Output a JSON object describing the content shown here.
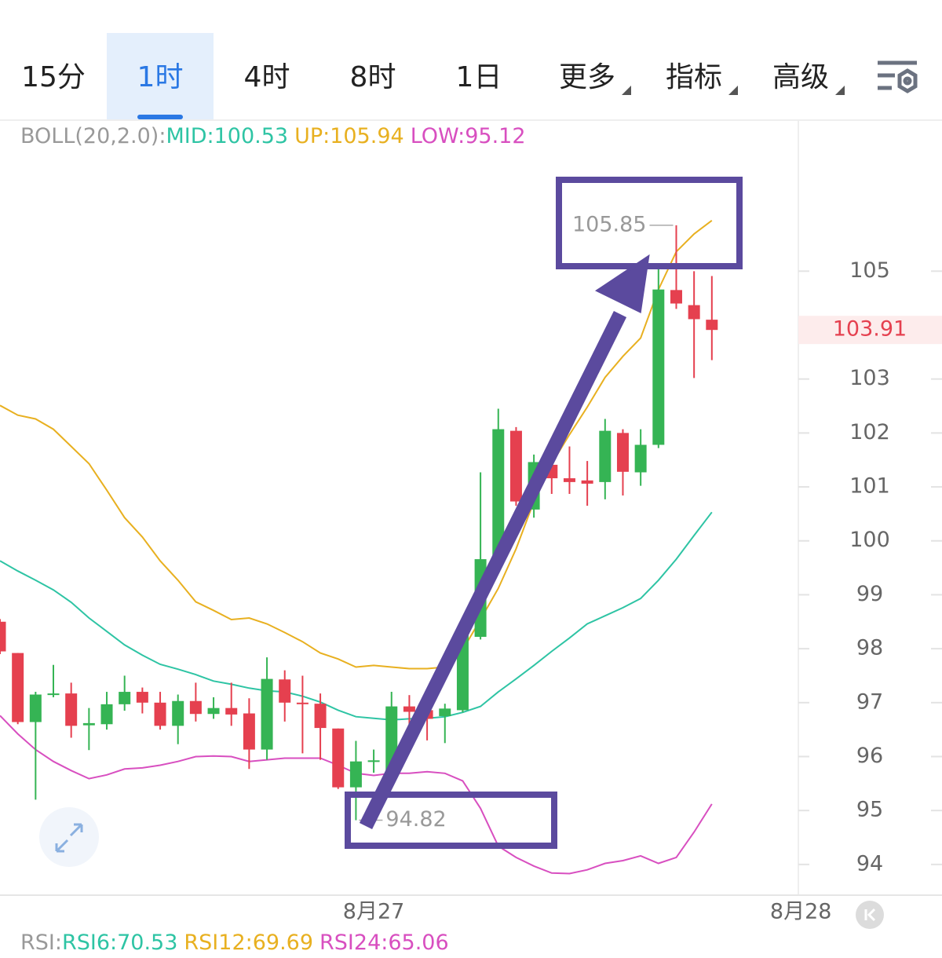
{
  "tabs": {
    "items": [
      "15分",
      "1时",
      "4时",
      "8时",
      "1日",
      "更多",
      "指标",
      "高级"
    ],
    "selected": 1
  },
  "chart_data": {
    "type": "candlestick",
    "indicator_label": "BOLL(20,2.0):",
    "up_color": "#35b454",
    "down_color": "#e5404f",
    "open": [
      98.5,
      97.92,
      96.64,
      97.15,
      97.17,
      96.58,
      96.6,
      96.97,
      97.2,
      97.0,
      96.57,
      97.03,
      96.79,
      96.9,
      96.8,
      96.13,
      97.43,
      97.0,
      96.98,
      96.52,
      95.43,
      95.9,
      95.62,
      96.93,
      96.86,
      96.75,
      96.86,
      98.22,
      99.66,
      102.04,
      100.58,
      101.41,
      101.16,
      101.12,
      101.09,
      102.0,
      101.27,
      101.78,
      104.65,
      104.37,
      104.1
    ],
    "high": [
      98.55,
      97.92,
      97.2,
      97.7,
      97.37,
      96.9,
      97.2,
      97.5,
      97.28,
      97.2,
      97.15,
      97.37,
      97.1,
      97.37,
      97.08,
      97.84,
      97.6,
      97.5,
      97.17,
      96.52,
      96.29,
      96.13,
      97.2,
      97.14,
      97.03,
      96.98,
      98.39,
      101.27,
      102.45,
      102.11,
      101.6,
      101.53,
      101.75,
      101.48,
      102.26,
      102.07,
      102.07,
      105.1,
      105.85,
      105.0,
      104.91
    ],
    "low": [
      97.9,
      96.6,
      95.2,
      97.1,
      96.35,
      96.12,
      96.5,
      96.85,
      96.8,
      96.5,
      96.23,
      96.65,
      96.7,
      96.57,
      95.77,
      95.94,
      96.65,
      96.06,
      95.94,
      95.4,
      94.82,
      95.7,
      95.47,
      96.5,
      96.3,
      96.25,
      96.82,
      98.17,
      99.66,
      100.65,
      100.43,
      100.87,
      100.87,
      100.65,
      100.77,
      100.84,
      101.02,
      101.72,
      104.3,
      103.02,
      103.35
    ],
    "close": [
      97.95,
      96.64,
      97.15,
      97.17,
      96.57,
      96.62,
      96.97,
      97.2,
      97.0,
      96.57,
      97.03,
      96.79,
      96.9,
      96.78,
      96.13,
      97.44,
      97.0,
      96.98,
      96.53,
      95.43,
      95.91,
      95.93,
      96.93,
      96.83,
      96.7,
      96.89,
      98.25,
      99.66,
      102.07,
      100.73,
      101.46,
      101.16,
      101.09,
      101.06,
      102.04,
      101.28,
      101.78,
      104.66,
      104.4,
      104.11,
      103.91
    ],
    "overlays": [
      {
        "name": "MID:100.53",
        "color": "#2ec4a4",
        "values": [
          99.63,
          99.44,
          99.27,
          99.09,
          98.86,
          98.57,
          98.32,
          98.07,
          97.88,
          97.71,
          97.62,
          97.52,
          97.4,
          97.34,
          97.27,
          97.22,
          97.2,
          97.12,
          97.01,
          96.86,
          96.74,
          96.71,
          96.68,
          96.7,
          96.71,
          96.74,
          96.82,
          96.93,
          97.2,
          97.44,
          97.69,
          97.95,
          98.2,
          98.46,
          98.61,
          98.76,
          98.93,
          99.27,
          99.66,
          100.1,
          100.53
        ]
      },
      {
        "name": "UP:105.94",
        "color": "#e8b020",
        "values": [
          102.51,
          102.33,
          102.26,
          102.07,
          101.75,
          101.43,
          100.94,
          100.43,
          100.07,
          99.63,
          99.27,
          98.87,
          98.71,
          98.54,
          98.57,
          98.46,
          98.3,
          98.13,
          97.92,
          97.81,
          97.66,
          97.69,
          97.66,
          97.63,
          97.63,
          97.66,
          97.98,
          98.54,
          99.12,
          99.85,
          100.73,
          101.43,
          101.97,
          102.48,
          103.03,
          103.42,
          103.76,
          104.66,
          105.36,
          105.69,
          105.94
        ]
      },
      {
        "name": "LOW:95.12",
        "color": "#d84fc0",
        "values": [
          96.76,
          96.42,
          96.13,
          95.91,
          95.74,
          95.59,
          95.66,
          95.77,
          95.79,
          95.84,
          95.91,
          96.0,
          96.01,
          96.0,
          95.91,
          95.94,
          95.97,
          95.97,
          95.97,
          95.84,
          95.69,
          95.65,
          95.69,
          95.69,
          95.72,
          95.69,
          95.55,
          95.04,
          94.34,
          94.13,
          93.97,
          93.84,
          93.83,
          93.9,
          94.02,
          94.07,
          94.16,
          94.02,
          94.13,
          94.6,
          95.12
        ]
      }
    ],
    "ylim": [
      93.43,
      107.8
    ],
    "yticks": [
      94,
      95,
      96,
      97,
      98,
      99,
      100,
      101,
      102,
      103,
      105
    ],
    "xlim": [
      0,
      44.86
    ],
    "xticks": [
      {
        "value": 21,
        "label": "8月27"
      },
      {
        "value": 45,
        "label": "8月28"
      }
    ],
    "last_price": 103.91,
    "high_marker": 105.85,
    "low_marker": 94.82
  },
  "rsi_legend": {
    "title": "RSI:",
    "items": [
      {
        "text": "RSI6:70.53",
        "color": "#2ec4a4"
      },
      {
        "text": "RSI12:69.69",
        "color": "#e8b020"
      },
      {
        "text": "RSI24:65.06",
        "color": "#d84fc0"
      }
    ]
  }
}
